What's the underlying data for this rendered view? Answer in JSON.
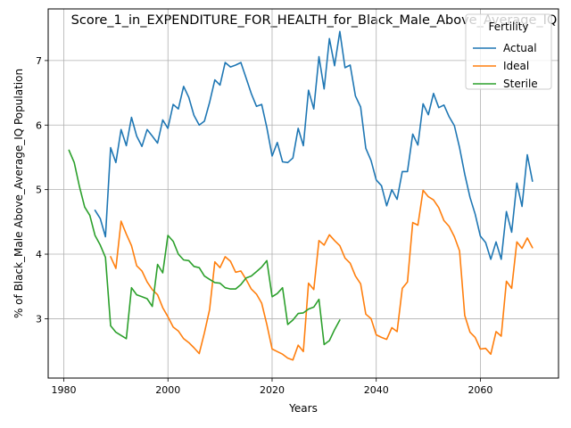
{
  "chart_data": {
    "type": "line",
    "title": "Score_1_in_EXPENDITURE_FOR_HEALTH_for_Black_Male_Above_Average_IQ",
    "xlabel": "Years",
    "ylabel": "% of Black_Male Above_Average_IQ Population",
    "xlim": [
      1977,
      2075
    ],
    "ylim": [
      2.08,
      7.8
    ],
    "xticks": [
      1980,
      2000,
      2020,
      2040,
      2060
    ],
    "yticks": [
      3,
      4,
      5,
      6,
      7
    ],
    "grid": true,
    "legend": {
      "title": "Fertility",
      "placement": "top-right"
    },
    "series": [
      {
        "name": "Actual",
        "color": "#1f77b4",
        "x": [
          1986,
          1987,
          1988,
          1989,
          1990,
          1991,
          1992,
          1993,
          1994,
          1995,
          1996,
          1997,
          1998,
          1999,
          2000,
          2001,
          2002,
          2003,
          2004,
          2005,
          2006,
          2007,
          2008,
          2009,
          2010,
          2011,
          2012,
          2013,
          2014,
          2015,
          2016,
          2017,
          2018,
          2019,
          2020,
          2021,
          2022,
          2023,
          2024,
          2025,
          2026,
          2027,
          2028,
          2029,
          2030,
          2031,
          2032,
          2033,
          2034,
          2035,
          2036,
          2037,
          2038,
          2039,
          2040,
          2041,
          2042,
          2043,
          2044,
          2045,
          2046,
          2047,
          2048,
          2049,
          2050,
          2051,
          2052,
          2053,
          2054,
          2055,
          2056,
          2057,
          2058,
          2059,
          2060,
          2061,
          2062,
          2063,
          2064,
          2065,
          2066,
          2067,
          2068,
          2069,
          2070
        ],
        "y": [
          4.68,
          4.55,
          4.27,
          5.65,
          5.42,
          5.93,
          5.68,
          6.12,
          5.83,
          5.67,
          5.93,
          5.83,
          5.72,
          6.08,
          5.95,
          6.32,
          6.25,
          6.6,
          6.43,
          6.15,
          6.0,
          6.06,
          6.35,
          6.7,
          6.62,
          6.97,
          6.9,
          6.93,
          6.97,
          6.73,
          6.49,
          6.29,
          6.32,
          5.96,
          5.52,
          5.73,
          5.43,
          5.42,
          5.49,
          5.95,
          5.68,
          6.54,
          6.25,
          7.06,
          6.56,
          7.34,
          6.92,
          7.45,
          6.89,
          6.93,
          6.45,
          6.28,
          5.64,
          5.45,
          5.15,
          5.06,
          4.75,
          5.0,
          4.85,
          5.28,
          5.28,
          5.86,
          5.69,
          6.33,
          6.16,
          6.49,
          6.27,
          6.31,
          6.13,
          5.99,
          5.65,
          5.24,
          4.88,
          4.62,
          4.28,
          4.18,
          3.92,
          4.19,
          3.92,
          4.66,
          4.34,
          5.1,
          4.74,
          5.54,
          5.13
        ]
      },
      {
        "name": "Ideal",
        "color": "#ff7f0e",
        "x": [
          1989,
          1990,
          1991,
          1992,
          1993,
          1994,
          1995,
          1996,
          1997,
          1998,
          1999,
          2000,
          2001,
          2002,
          2003,
          2004,
          2005,
          2006,
          2007,
          2008,
          2009,
          2010,
          2011,
          2012,
          2013,
          2014,
          2015,
          2016,
          2017,
          2018,
          2019,
          2020,
          2021,
          2022,
          2023,
          2024,
          2025,
          2026,
          2027,
          2028,
          2029,
          2030,
          2031,
          2032,
          2033,
          2034,
          2035,
          2036,
          2037,
          2038,
          2039,
          2040,
          2041,
          2042,
          2043,
          2044,
          2045,
          2046,
          2047,
          2048,
          2049,
          2050,
          2051,
          2052,
          2053,
          2054,
          2055,
          2056,
          2057,
          2058,
          2059,
          2060,
          2061,
          2062,
          2063,
          2064,
          2065,
          2066,
          2067,
          2068,
          2069,
          2070
        ],
        "y": [
          3.96,
          3.78,
          4.51,
          4.31,
          4.13,
          3.82,
          3.74,
          3.57,
          3.45,
          3.37,
          3.17,
          3.03,
          2.87,
          2.81,
          2.69,
          2.63,
          2.55,
          2.46,
          2.78,
          3.14,
          3.88,
          3.79,
          3.96,
          3.89,
          3.72,
          3.74,
          3.61,
          3.46,
          3.38,
          3.24,
          2.91,
          2.53,
          2.49,
          2.45,
          2.39,
          2.36,
          2.59,
          2.49,
          3.55,
          3.45,
          4.21,
          4.14,
          4.3,
          4.21,
          4.13,
          3.94,
          3.86,
          3.66,
          3.54,
          3.07,
          3.0,
          2.75,
          2.71,
          2.68,
          2.86,
          2.8,
          3.47,
          3.57,
          4.49,
          4.45,
          4.99,
          4.89,
          4.84,
          4.72,
          4.52,
          4.43,
          4.27,
          4.05,
          3.05,
          2.79,
          2.71,
          2.53,
          2.54,
          2.45,
          2.8,
          2.73,
          3.58,
          3.47,
          4.19,
          4.09,
          4.25,
          4.1
        ]
      },
      {
        "name": "Sterile",
        "color": "#2ca02c",
        "x": [
          1981,
          1982,
          1983,
          1984,
          1985,
          1986,
          1987,
          1988,
          1989,
          1990,
          1991,
          1992,
          1993,
          1994,
          1995,
          1996,
          1997,
          1998,
          1999,
          2000,
          2001,
          2002,
          2003,
          2004,
          2005,
          2006,
          2007,
          2008,
          2009,
          2010,
          2011,
          2012,
          2013,
          2014,
          2015,
          2016,
          2017,
          2018,
          2019,
          2020,
          2021,
          2022,
          2023,
          2024,
          2025,
          2026,
          2027,
          2028,
          2029,
          2030,
          2031,
          2032,
          2033
        ],
        "y": [
          5.61,
          5.42,
          5.05,
          4.73,
          4.6,
          4.29,
          4.14,
          3.95,
          2.89,
          2.79,
          2.74,
          2.69,
          3.48,
          3.37,
          3.34,
          3.31,
          3.19,
          3.84,
          3.71,
          4.29,
          4.2,
          4.0,
          3.91,
          3.9,
          3.81,
          3.79,
          3.66,
          3.61,
          3.56,
          3.55,
          3.48,
          3.46,
          3.46,
          3.53,
          3.63,
          3.66,
          3.73,
          3.8,
          3.9,
          3.34,
          3.39,
          3.48,
          2.91,
          2.98,
          3.08,
          3.09,
          3.15,
          3.18,
          3.3,
          2.6,
          2.66,
          2.83,
          2.98
        ]
      }
    ]
  }
}
